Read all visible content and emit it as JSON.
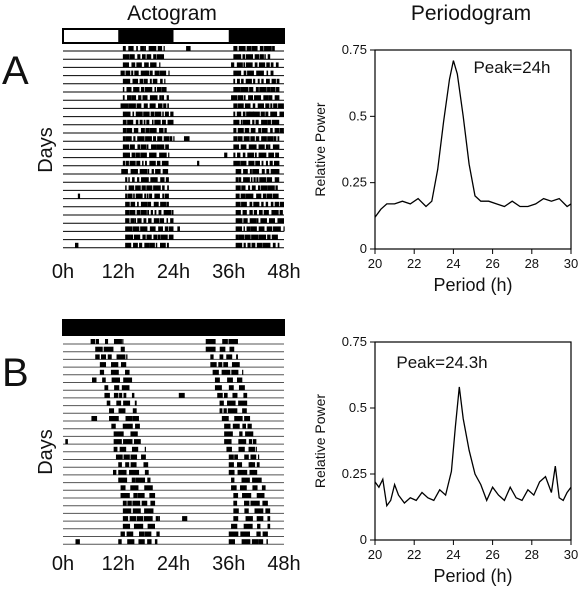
{
  "titles": {
    "actogram": "Actogram",
    "periodogram": "Periodogram"
  },
  "chart_data": [
    {
      "panel": "A",
      "type": "actogram",
      "ylabel": "Days",
      "x_ticks": [
        "0h",
        "12h",
        "24h",
        "36h",
        "48h"
      ],
      "xlim": [
        0,
        48
      ],
      "light_bar": [
        {
          "from": 0,
          "to": 12,
          "state": "light"
        },
        {
          "from": 12,
          "to": 24,
          "state": "dark"
        },
        {
          "from": 24,
          "to": 36,
          "state": "light"
        },
        {
          "from": 36,
          "to": 48,
          "state": "dark"
        }
      ],
      "days": 25,
      "activity_onset_hours": [
        13,
        13,
        13,
        12.5,
        13,
        13,
        13,
        12.5,
        13,
        13,
        13,
        13,
        13,
        13,
        13,
        13,
        13.5,
        13.5,
        13.5,
        13.5,
        13.5,
        13.5,
        13.5,
        13.5,
        13.5
      ],
      "activity_offset_hours": [
        22,
        22,
        21,
        23,
        22,
        23,
        23,
        23,
        24,
        24,
        23,
        24,
        23,
        23,
        23,
        23,
        23,
        23,
        23,
        23,
        24,
        24,
        24,
        24,
        23
      ]
    },
    {
      "panel": "A",
      "type": "line",
      "xlabel": "Period (h)",
      "ylabel": "Relative Power",
      "xlim": [
        20,
        30
      ],
      "ylim": [
        0,
        0.75
      ],
      "x_ticks": [
        20,
        22,
        24,
        26,
        28,
        30
      ],
      "y_ticks": [
        0,
        0.25,
        0.5,
        0.75
      ],
      "y_tick_labels": [
        "0",
        "0.25",
        "0.5",
        "0.75"
      ],
      "annotation": "Peak=24h",
      "x": [
        20,
        20.3,
        20.6,
        21,
        21.4,
        21.8,
        22.2,
        22.6,
        22.9,
        23.2,
        23.5,
        23.8,
        24.0,
        24.2,
        24.5,
        24.8,
        25.1,
        25.4,
        25.8,
        26.2,
        26.6,
        27.0,
        27.4,
        27.8,
        28.2,
        28.6,
        29.0,
        29.4,
        29.8,
        30
      ],
      "y": [
        0.12,
        0.15,
        0.17,
        0.17,
        0.18,
        0.17,
        0.19,
        0.16,
        0.18,
        0.3,
        0.48,
        0.64,
        0.71,
        0.66,
        0.5,
        0.32,
        0.2,
        0.18,
        0.18,
        0.17,
        0.16,
        0.18,
        0.16,
        0.16,
        0.17,
        0.19,
        0.18,
        0.19,
        0.16,
        0.17
      ]
    },
    {
      "panel": "B",
      "type": "actogram",
      "ylabel": "Days",
      "x_ticks": [
        "0h",
        "12h",
        "24h",
        "36h",
        "48h"
      ],
      "xlim": [
        0,
        48
      ],
      "light_bar": [
        {
          "from": 0,
          "to": 48,
          "state": "dark"
        }
      ],
      "days": 27,
      "activity_onset_hours": [
        6,
        7,
        7,
        8,
        8,
        8.5,
        9,
        9,
        9.5,
        10,
        10,
        10.5,
        11,
        11,
        11,
        11.5,
        12,
        12,
        12,
        12.5,
        12.5,
        13,
        13,
        13,
        13,
        12.5,
        12
      ],
      "activity_offset_hours": [
        13,
        14,
        14,
        14,
        14.5,
        15,
        15,
        15.5,
        16,
        16,
        16.5,
        17,
        17,
        17.5,
        18,
        18,
        18.5,
        19,
        19,
        19.5,
        20,
        20,
        20.5,
        21,
        21,
        21,
        20.5
      ]
    },
    {
      "panel": "B",
      "type": "line",
      "xlabel": "Period (h)",
      "ylabel": "Relative Power",
      "xlim": [
        20,
        30
      ],
      "ylim": [
        0,
        0.75
      ],
      "x_ticks": [
        20,
        22,
        24,
        26,
        28,
        30
      ],
      "y_ticks": [
        0,
        0.25,
        0.5,
        0.75
      ],
      "y_tick_labels": [
        "0",
        "0.25",
        "0.5",
        "0.75"
      ],
      "annotation": "Peak=24.3h",
      "x": [
        20,
        20.2,
        20.4,
        20.6,
        20.8,
        21.0,
        21.2,
        21.5,
        21.8,
        22.1,
        22.4,
        22.7,
        23.0,
        23.3,
        23.6,
        23.9,
        24.1,
        24.3,
        24.5,
        24.8,
        25.1,
        25.4,
        25.7,
        26.0,
        26.3,
        26.6,
        26.9,
        27.2,
        27.5,
        27.8,
        28.1,
        28.4,
        28.7,
        29.0,
        29.2,
        29.4,
        29.6,
        29.8,
        30
      ],
      "y": [
        0.22,
        0.2,
        0.23,
        0.13,
        0.15,
        0.21,
        0.17,
        0.14,
        0.16,
        0.15,
        0.18,
        0.16,
        0.15,
        0.19,
        0.17,
        0.26,
        0.43,
        0.58,
        0.46,
        0.34,
        0.25,
        0.21,
        0.15,
        0.2,
        0.17,
        0.15,
        0.2,
        0.16,
        0.15,
        0.19,
        0.17,
        0.22,
        0.24,
        0.18,
        0.28,
        0.16,
        0.15,
        0.18,
        0.2
      ]
    }
  ]
}
